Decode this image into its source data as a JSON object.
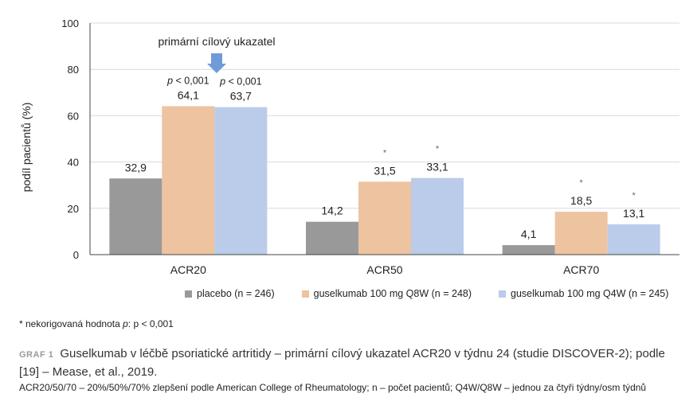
{
  "chart_data": {
    "type": "bar",
    "categories": [
      "ACR20",
      "ACR50",
      "ACR70"
    ],
    "series": [
      {
        "name": "placebo (n = 246)",
        "color": "#999999",
        "values": [
          32.9,
          14.2,
          4.1
        ],
        "labels": [
          "32,9",
          "14,2",
          "4,1"
        ]
      },
      {
        "name": "guselkumab 100 mg Q8W (n = 248)",
        "color": "#EDC3A0",
        "values": [
          64.1,
          31.5,
          18.5
        ],
        "labels": [
          "64,1",
          "31,5",
          "18,5"
        ]
      },
      {
        "name": "guselkumab 100 mg Q4W (n = 245)",
        "color": "#BACCE9",
        "values": [
          63.7,
          33.1,
          13.1
        ],
        "labels": [
          "63,7",
          "33,1",
          "13,1"
        ]
      }
    ],
    "significance": [
      [
        "",
        "",
        ""
      ],
      [
        "p < 0,001",
        "*",
        "*"
      ],
      [
        "p < 0,001",
        "*",
        "*"
      ]
    ],
    "ylabel": "podíl pacientů (%)",
    "ylim": [
      0,
      100
    ],
    "yticks": [
      0,
      20,
      40,
      60,
      80,
      100
    ],
    "grid": true,
    "annotation": "primární cílový ukazatel",
    "arrow_color": "#6F9BD8",
    "legend_position": "bottom"
  },
  "footnote": {
    "marker": "*",
    "text": " nekorigovaná hodnota ",
    "p_symbol": "p",
    "value": ": p < 0,001"
  },
  "caption": {
    "tag": "GRAF 1",
    "text": "Guselkumab v léčbě psoriatické artritidy – primární cílový ukazatel ACR20 v týdnu 24 (studie DISCOVER-2); podle [19] – Mease, et al., 2019."
  },
  "abbreviations": "ACR20/50/70 – 20%/50%/70% zlepšení podle American College of Rheumatology; n – počet pacientů; Q4W/Q8W – jednou za čtyři týdny/osm týdnů"
}
